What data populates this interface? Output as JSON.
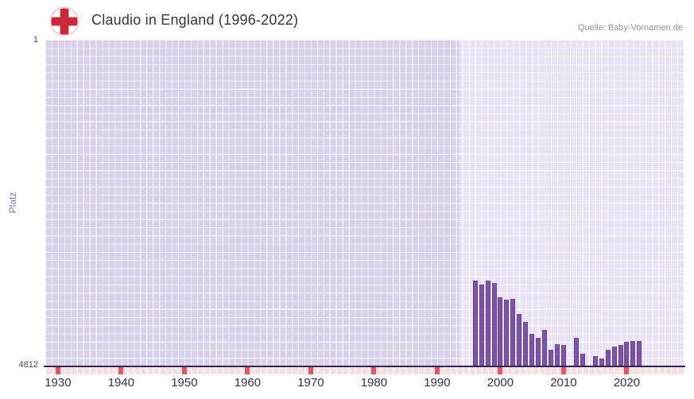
{
  "header": {
    "title": "Claudio in England (1996-2022)",
    "source": "Quelle: Baby-Vornamen.de"
  },
  "axes": {
    "y_title": "Platz",
    "y_top": "1",
    "y_bottom": "4812",
    "x_ticks": [
      1930,
      1940,
      1950,
      1960,
      1970,
      1980,
      1990,
      2000,
      2010,
      2020
    ]
  },
  "chart_data": {
    "type": "bar",
    "title": "Claudio in England (1996-2022)",
    "xlabel": "",
    "ylabel": "Platz",
    "x": [
      1996,
      1997,
      1998,
      1999,
      2000,
      2001,
      2002,
      2003,
      2004,
      2005,
      2006,
      2007,
      2008,
      2009,
      2010,
      2011,
      2012,
      2013,
      2014,
      2015,
      2016,
      2017,
      2018,
      2019,
      2020,
      2021,
      2022
    ],
    "values": [
      3560,
      3610,
      3555,
      3590,
      3800,
      3835,
      3830,
      4050,
      4170,
      4340,
      4405,
      4285,
      4580,
      4500,
      4505,
      null,
      4400,
      4640,
      null,
      4670,
      4700,
      4580,
      4530,
      4505,
      4465,
      4445,
      4450
    ],
    "ylim": [
      4812,
      1
    ],
    "y_axis_inverted": true,
    "xlim": [
      1928,
      2029
    ],
    "highlight_band": [
      1993.5,
      2029
    ],
    "grid": true,
    "legend": "none",
    "bar_color": "#7d55a6",
    "plot_bg": "#d9d2e9",
    "band_bg": "#e9e4f4",
    "tick_strip": {
      "base": "#f6dfe4",
      "decade": "#dd5868"
    }
  }
}
